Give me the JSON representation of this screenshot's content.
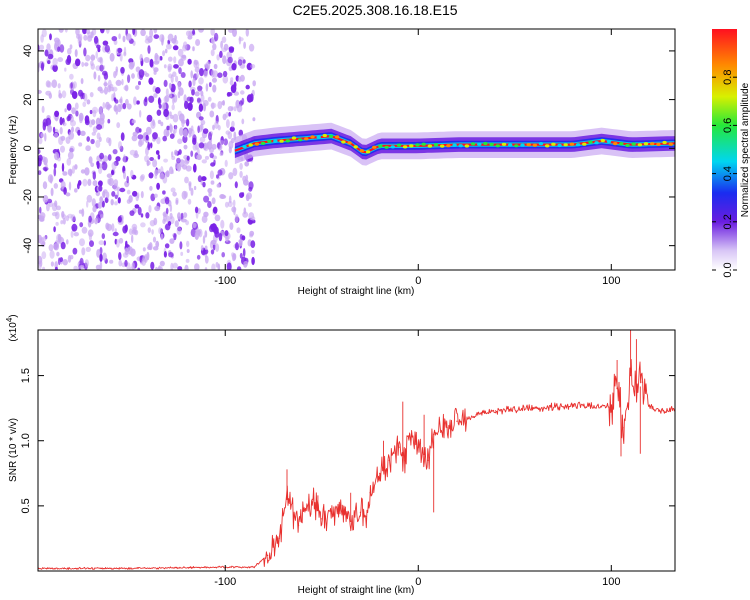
{
  "figure_title": "C2E5.2025.308.16.18.E15",
  "colors": {
    "line": "#e8302e",
    "scatter_dense": "#7a22e6",
    "scatter_light": "#c9a8f2",
    "frame": "#000000"
  },
  "chart_data": [
    {
      "type": "heatmap",
      "title": "C2E5.2025.308.16.18.E15",
      "xlabel": "Height of straight line (km)",
      "ylabel": "Frequency (Hz)",
      "xlim": [
        -197,
        133
      ],
      "ylim": [
        -50,
        49
      ],
      "x_ticks": [
        -100,
        0,
        100
      ],
      "x_tick_labels": [
        "-100",
        "0",
        "100"
      ],
      "y_ticks": [
        -40,
        -20,
        0,
        20,
        40
      ],
      "y_tick_labels": [
        "-40",
        "-20",
        "0",
        "20",
        "40"
      ],
      "noise_region_x": [
        -197,
        -85
      ],
      "ridge": [
        {
          "x": -95,
          "f": -1
        },
        {
          "x": -85,
          "f": 2
        },
        {
          "x": -75,
          "f": 3
        },
        {
          "x": -60,
          "f": 4
        },
        {
          "x": -45,
          "f": 5
        },
        {
          "x": -35,
          "f": 2
        },
        {
          "x": -28,
          "f": -2
        },
        {
          "x": -20,
          "f": 1
        },
        {
          "x": -10,
          "f": 1
        },
        {
          "x": 0,
          "f": 1
        },
        {
          "x": 20,
          "f": 1.5
        },
        {
          "x": 50,
          "f": 1.5
        },
        {
          "x": 80,
          "f": 1.5
        },
        {
          "x": 95,
          "f": 3
        },
        {
          "x": 110,
          "f": 1.5
        },
        {
          "x": 133,
          "f": 2
        }
      ],
      "colorbar": {
        "label": "Normalized spectral amplitude",
        "range": [
          0,
          1
        ],
        "ticks": [
          0.0,
          0.2,
          0.4,
          0.6,
          0.8
        ],
        "tick_labels": [
          "0.0",
          "0.2",
          "0.4",
          "0.6",
          "0.8"
        ]
      }
    },
    {
      "type": "line",
      "title": "",
      "xlabel": "Height of straight line (km)",
      "ylabel": "SNR (10 * v/v)",
      "y_exponent_label": "(x10",
      "y_exponent_power": "4",
      "xlim": [
        -197,
        133
      ],
      "ylim": [
        0.0,
        1.85
      ],
      "x_ticks": [
        -100,
        0,
        100
      ],
      "x_tick_labels": [
        "-100",
        "0",
        "100"
      ],
      "y_ticks": [
        0.5,
        1.0,
        1.5
      ],
      "y_tick_labels": [
        "0.5",
        "1.0",
        "1.5"
      ],
      "series": [
        {
          "name": "SNR",
          "x": [
            -197,
            -150,
            -100,
            -85,
            -78,
            -72,
            -68,
            -62,
            -55,
            -50,
            -45,
            -40,
            -35,
            -30,
            -27,
            -25,
            -20,
            -15,
            -10,
            -7,
            -5,
            0,
            5,
            8,
            15,
            20,
            30,
            40,
            60,
            80,
            95,
            100,
            103,
            106,
            110,
            113,
            116,
            120,
            125,
            133
          ],
          "values": [
            0.02,
            0.02,
            0.03,
            0.03,
            0.12,
            0.25,
            0.55,
            0.35,
            0.55,
            0.4,
            0.45,
            0.5,
            0.38,
            0.45,
            0.42,
            0.6,
            0.75,
            0.85,
            0.95,
            0.85,
            1.02,
            0.95,
            0.85,
            1.05,
            1.1,
            1.15,
            1.2,
            1.23,
            1.25,
            1.27,
            1.26,
            1.27,
            1.4,
            1.1,
            1.5,
            1.35,
            1.45,
            1.26,
            1.23,
            1.24
          ]
        }
      ],
      "peak_annotations": [
        {
          "x": -68,
          "y": 0.78
        },
        {
          "x": -52,
          "y": 0.58
        },
        {
          "x": -35,
          "y": 0.6
        },
        {
          "x": -18,
          "y": 1.0
        },
        {
          "x": -8,
          "y": 1.3
        },
        {
          "x": 3,
          "y": 1.2
        },
        {
          "x": 8,
          "y": 0.45
        },
        {
          "x": 103,
          "y": 1.62
        },
        {
          "x": 105,
          "y": 0.88
        },
        {
          "x": 110,
          "y": 1.85
        },
        {
          "x": 113,
          "y": 1.78
        },
        {
          "x": 115,
          "y": 0.9
        }
      ]
    }
  ]
}
